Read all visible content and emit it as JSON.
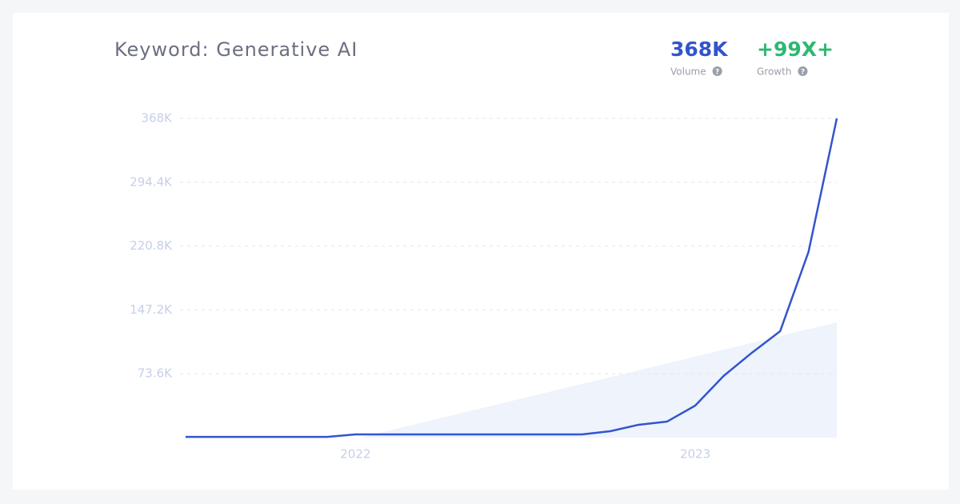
{
  "chart_data": {
    "type": "line",
    "title": "Keyword: Generative AI",
    "stats": [
      {
        "value": "368K",
        "label": "Volume",
        "color": "#3355cc"
      },
      {
        "value": "+99X+",
        "label": "Growth",
        "color": "#2eb872"
      }
    ],
    "categories": [
      null,
      null,
      null,
      null,
      null,
      null,
      "2022",
      null,
      null,
      null,
      null,
      null,
      null,
      null,
      null,
      null,
      null,
      null,
      "2023",
      null,
      null,
      null,
      null,
      null
    ],
    "series": [
      {
        "name": "Volume",
        "color": "#3355cc",
        "values": [
          800,
          800,
          800,
          800,
          800,
          800,
          3700,
          3700,
          3700,
          3700,
          3700,
          3700,
          3700,
          3700,
          3700,
          7400,
          14800,
          18400,
          36900,
          71000,
          97800,
          122700,
          214000,
          368000
        ]
      }
    ],
    "ylim": [
      0,
      368000
    ],
    "yticks": [
      {
        "value": 73600,
        "label": "73.6K"
      },
      {
        "value": 147200,
        "label": "147.2K"
      },
      {
        "value": 220800,
        "label": "220.8K"
      },
      {
        "value": 294400,
        "label": "294.4K"
      },
      {
        "value": 368000,
        "label": "368K"
      }
    ],
    "grid": true
  }
}
